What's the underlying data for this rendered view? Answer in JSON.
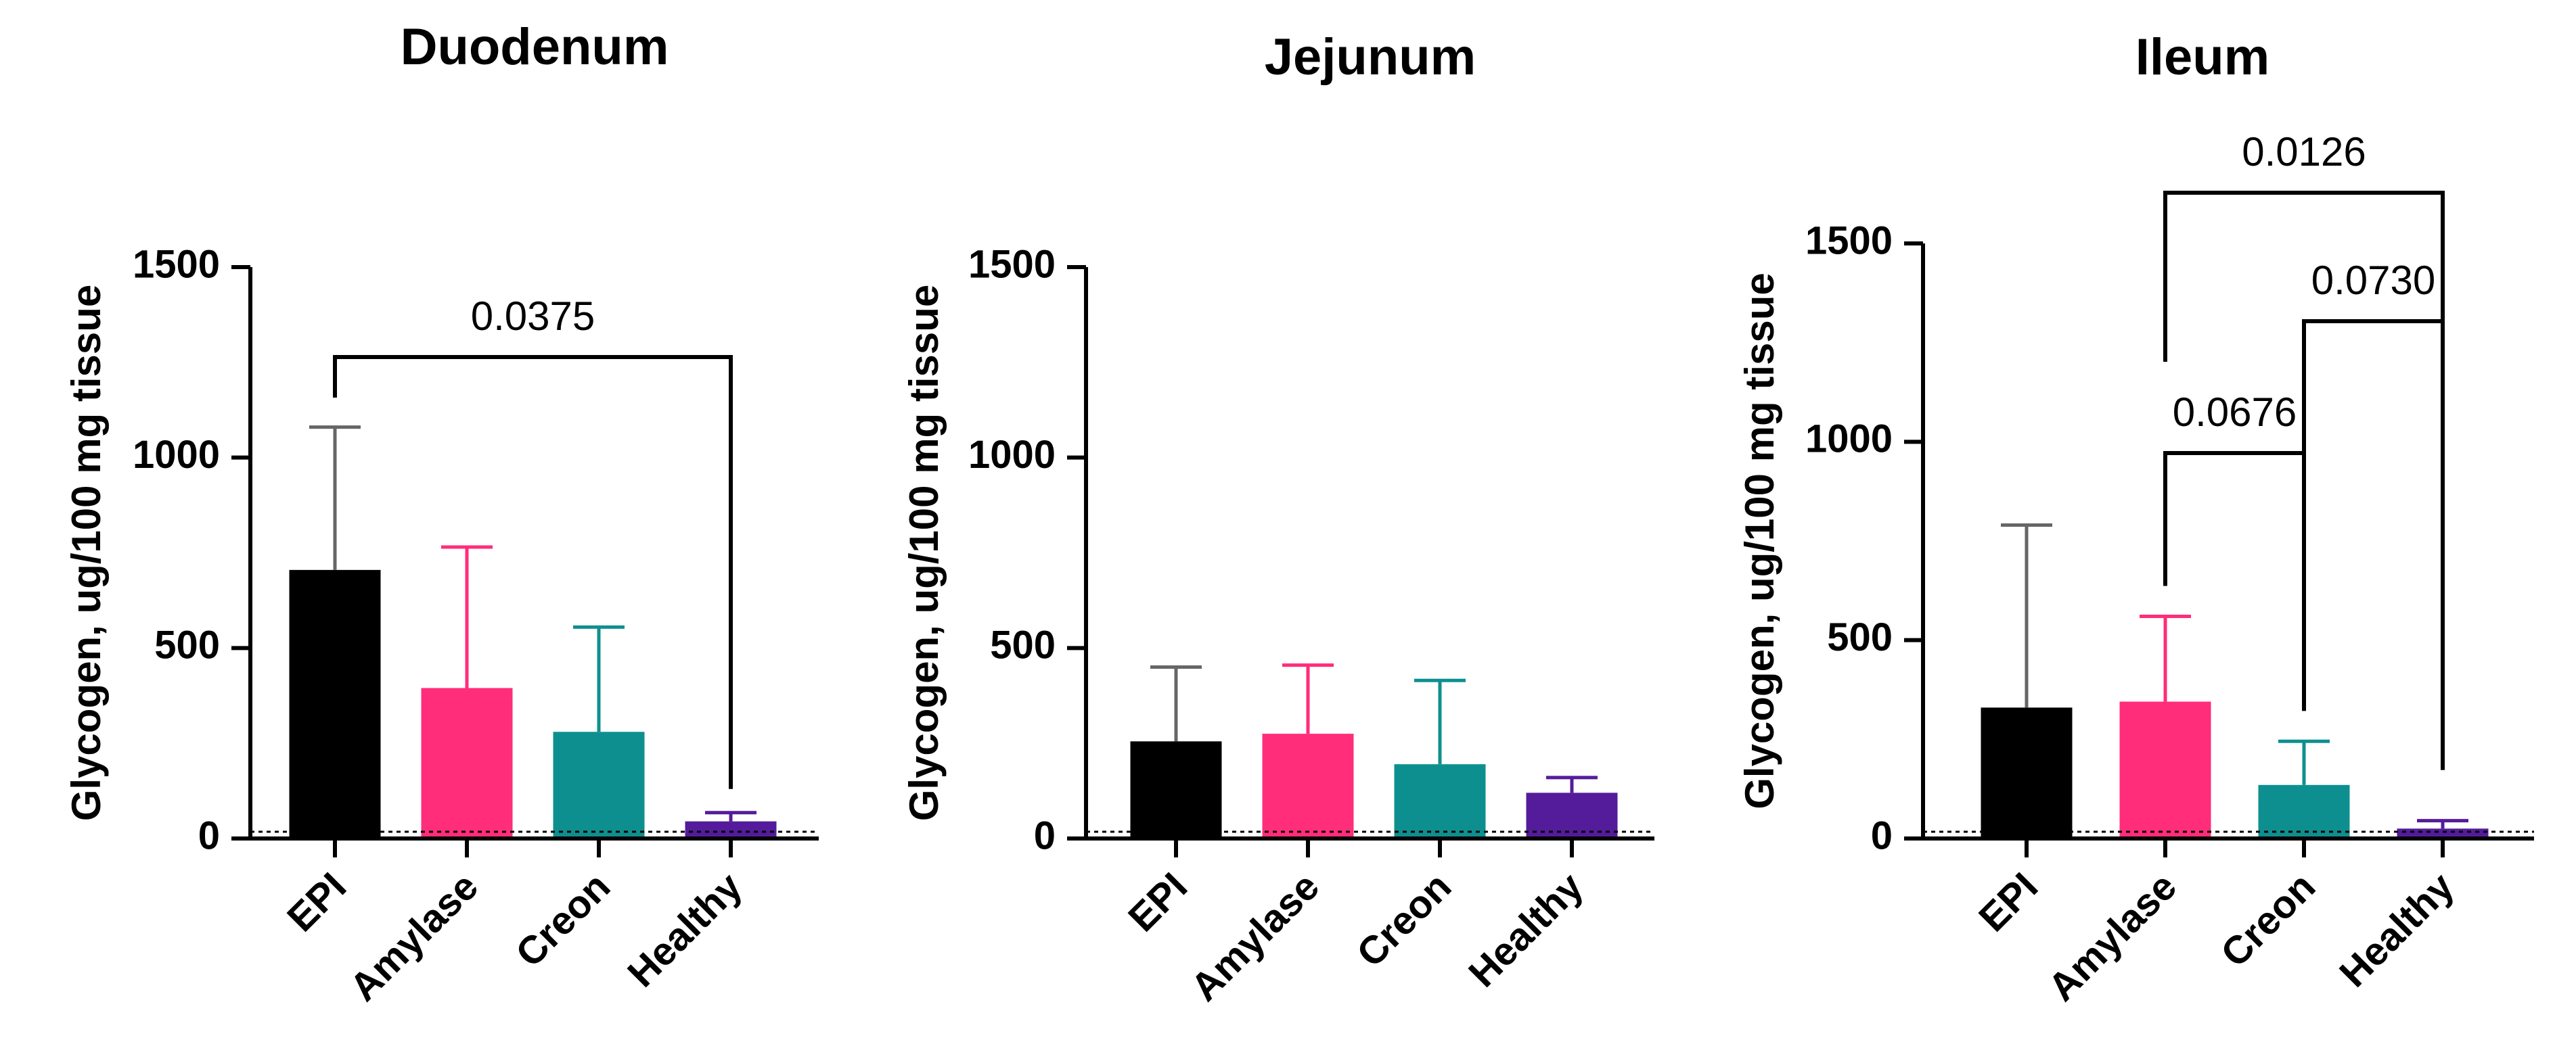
{
  "chart_data": [
    {
      "type": "bar",
      "title": "Duodenum",
      "ylabel": "Glycogen, ug/100 mg tissue",
      "ylim": [
        0,
        1500
      ],
      "yticks": [
        0,
        500,
        1000,
        1500
      ],
      "categories": [
        "EPI",
        "Amylase",
        "Creon",
        "Healthy"
      ],
      "values": [
        705,
        395,
        280,
        45
      ],
      "error_upper": [
        1080,
        765,
        555,
        68
      ],
      "colors": [
        "#000000",
        "#ff2d7a",
        "#0e8f8f",
        "#541c9a"
      ],
      "comparisons": [
        {
          "from": "EPI",
          "to": "Healthy",
          "label": "0.0375"
        }
      ]
    },
    {
      "type": "bar",
      "title": "Jejunum",
      "ylabel": "Glycogen, ug/100 mg tissue",
      "ylim": [
        0,
        1500
      ],
      "yticks": [
        0,
        500,
        1000,
        1500
      ],
      "categories": [
        "EPI",
        "Amylase",
        "Creon",
        "Healthy"
      ],
      "values": [
        255,
        275,
        195,
        120
      ],
      "error_upper": [
        450,
        455,
        415,
        160
      ],
      "colors": [
        "#000000",
        "#ff2d7a",
        "#0e8f8f",
        "#541c9a"
      ],
      "comparisons": []
    },
    {
      "type": "bar",
      "title": "Ileum",
      "ylabel": "Glycogen, ug/100 mg tissue",
      "ylim": [
        0,
        1500
      ],
      "yticks": [
        0,
        500,
        1000,
        1500
      ],
      "categories": [
        "EPI",
        "Amylase",
        "Creon",
        "Healthy"
      ],
      "values": [
        330,
        345,
        135,
        25
      ],
      "error_upper": [
        790,
        560,
        245,
        45
      ],
      "colors": [
        "#000000",
        "#ff2d7a",
        "#0e8f8f",
        "#541c9a"
      ],
      "comparisons": [
        {
          "from": "Amylase",
          "to": "Creon",
          "label": "0.0676"
        },
        {
          "from": "Creon",
          "to": "Healthy",
          "label": "0.0730"
        },
        {
          "from": "Amylase",
          "to": "Healthy",
          "label": "0.0126"
        }
      ]
    }
  ]
}
